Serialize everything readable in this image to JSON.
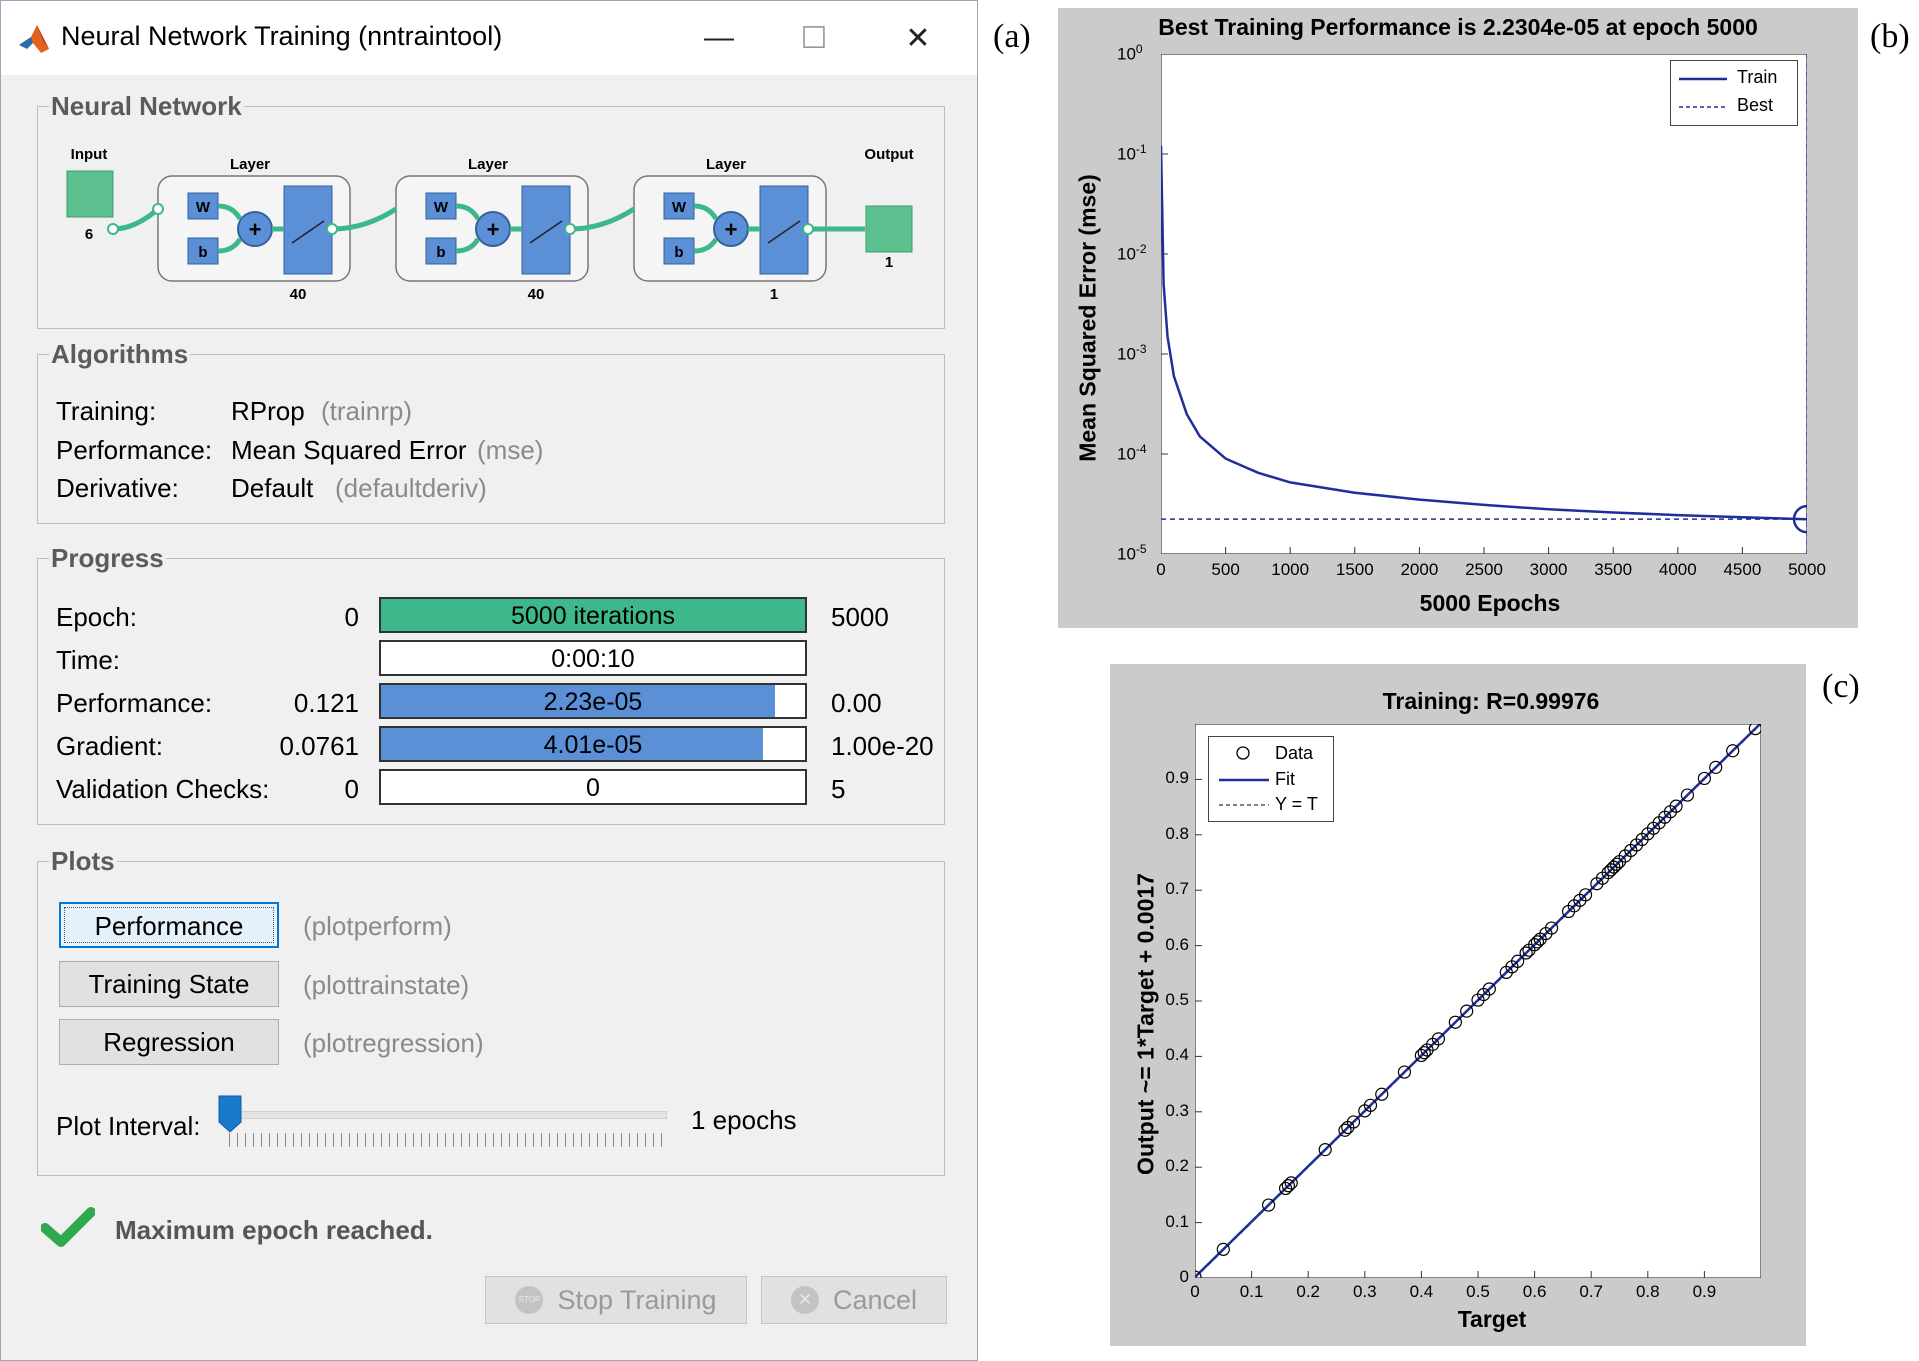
{
  "window": {
    "title": "Neural Network Training (nntraintool)",
    "minimize_glyph": "—",
    "maximize_glyph": "☐",
    "close_glyph": "✕"
  },
  "sections": {
    "network": "Neural Network",
    "algorithms": "Algorithms",
    "progress": "Progress",
    "plots": "Plots"
  },
  "network": {
    "input_label": "Input",
    "input_size": "6",
    "output_label": "Output",
    "output_size": "1",
    "layers": [
      {
        "label": "Layer",
        "size": "40",
        "w": "W",
        "b": "b"
      },
      {
        "label": "Layer",
        "size": "40",
        "w": "W",
        "b": "b"
      },
      {
        "label": "Layer",
        "size": "1",
        "w": "W",
        "b": "b"
      }
    ]
  },
  "algorithms": [
    {
      "label": "Training:",
      "value": "RProp",
      "hint": "(trainrp)"
    },
    {
      "label": "Performance:",
      "value": "Mean Squared Error",
      "hint": "(mse)"
    },
    {
      "label": "Derivative:",
      "value": "Default",
      "hint": "(defaultderiv)"
    }
  ],
  "progress": [
    {
      "label": "Epoch:",
      "min": "0",
      "bar_text": "5000 iterations",
      "max": "5000",
      "fill": 1.0,
      "color": "#3cb88a"
    },
    {
      "label": "Time:",
      "min": "",
      "bar_text": "0:00:10",
      "max": "",
      "fill": 0,
      "color": "#5b8fd6"
    },
    {
      "label": "Performance:",
      "min": "0.121",
      "bar_text": "2.23e-05",
      "max": "0.00",
      "fill": 0.93,
      "color": "#5b8fd6"
    },
    {
      "label": "Gradient:",
      "min": "0.0761",
      "bar_text": "4.01e-05",
      "max": "1.00e-20",
      "fill": 0.9,
      "color": "#5b8fd6"
    },
    {
      "label": "Validation Checks:",
      "min": "0",
      "bar_text": "0",
      "max": "5",
      "fill": 0,
      "color": "#5b8fd6"
    }
  ],
  "plots": [
    {
      "label": "Performance",
      "hint": "(plotperform)",
      "active": true
    },
    {
      "label": "Training State",
      "hint": "(plottrainstate)",
      "active": false
    },
    {
      "label": "Regression",
      "hint": "(plotregression)",
      "active": false
    }
  ],
  "plot_interval": {
    "label": "Plot Interval:",
    "value_text": "1 epochs",
    "value": 1
  },
  "status": "Maximum epoch reached.",
  "buttons": {
    "stop": "Stop Training",
    "stop_icon": "STOP",
    "cancel": "Cancel",
    "cancel_icon": "✕"
  },
  "panel_letters": {
    "a": "(a)",
    "b": "(b)",
    "c": "(c)"
  },
  "colors": {
    "train": "#1f2f9a",
    "accent": "#0078d7",
    "green": "#3cb88a",
    "blue": "#5b8fd6"
  },
  "chart_data": [
    {
      "type": "line",
      "title": "Best Training Performance is 2.2304e-05 at epoch 5000",
      "xlabel": "5000 Epochs",
      "ylabel": "Mean Squared Error  (mse)",
      "yscale": "log",
      "xlim": [
        0,
        5000
      ],
      "ylim": [
        1e-05,
        1
      ],
      "xticks": [
        0,
        500,
        1000,
        1500,
        2000,
        2500,
        3000,
        3500,
        4000,
        4500,
        5000
      ],
      "ytick_labels": [
        {
          "base": "10",
          "exp": "0",
          "value": 1
        },
        {
          "base": "10",
          "exp": "-1",
          "value": 0.1
        },
        {
          "base": "10",
          "exp": "-2",
          "value": 0.01
        },
        {
          "base": "10",
          "exp": "-3",
          "value": 0.001
        },
        {
          "base": "10",
          "exp": "-4",
          "value": 0.0001
        },
        {
          "base": "10",
          "exp": "-5",
          "value": 1e-05
        }
      ],
      "legend": [
        "Train",
        "Best"
      ],
      "series": [
        {
          "name": "Train",
          "x": [
            0,
            20,
            50,
            100,
            200,
            300,
            500,
            750,
            1000,
            1500,
            2000,
            2500,
            3000,
            3500,
            4000,
            4500,
            5000
          ],
          "y": [
            0.121,
            0.005,
            0.0015,
            0.0006,
            0.00025,
            0.00015,
            9e-05,
            6.5e-05,
            5.2e-05,
            4.1e-05,
            3.5e-05,
            3.1e-05,
            2.8e-05,
            2.6e-05,
            2.45e-05,
            2.33e-05,
            2.23e-05
          ]
        },
        {
          "name": "Best",
          "y_value": 2.2304e-05,
          "x_value": 5000
        }
      ]
    },
    {
      "type": "scatter",
      "title": "Training: R=0.99976",
      "xlabel": "Target",
      "ylabel": "Output ~= 1*Target + 0.0017",
      "xlim": [
        0,
        1
      ],
      "ylim": [
        0,
        1
      ],
      "xticks": [
        "0",
        "0.1",
        "0.2",
        "0.3",
        "0.4",
        "0.5",
        "0.6",
        "0.7",
        "0.8",
        "0.9"
      ],
      "yticks": [
        "0",
        "0.1",
        "0.2",
        "0.3",
        "0.4",
        "0.5",
        "0.6",
        "0.7",
        "0.8",
        "0.9"
      ],
      "legend": [
        "Data",
        "Fit",
        "Y = T"
      ],
      "fit": {
        "slope": 1,
        "intercept": 0.0017
      },
      "points": [
        0.0,
        0.05,
        0.13,
        0.16,
        0.165,
        0.17,
        0.23,
        0.265,
        0.27,
        0.28,
        0.3,
        0.31,
        0.33,
        0.37,
        0.4,
        0.405,
        0.41,
        0.42,
        0.43,
        0.46,
        0.48,
        0.5,
        0.51,
        0.52,
        0.55,
        0.56,
        0.57,
        0.585,
        0.59,
        0.6,
        0.605,
        0.61,
        0.62,
        0.63,
        0.66,
        0.67,
        0.68,
        0.69,
        0.71,
        0.72,
        0.73,
        0.735,
        0.74,
        0.745,
        0.75,
        0.76,
        0.77,
        0.78,
        0.79,
        0.8,
        0.81,
        0.82,
        0.83,
        0.84,
        0.85,
        0.87,
        0.9,
        0.92,
        0.95,
        0.99
      ]
    }
  ]
}
